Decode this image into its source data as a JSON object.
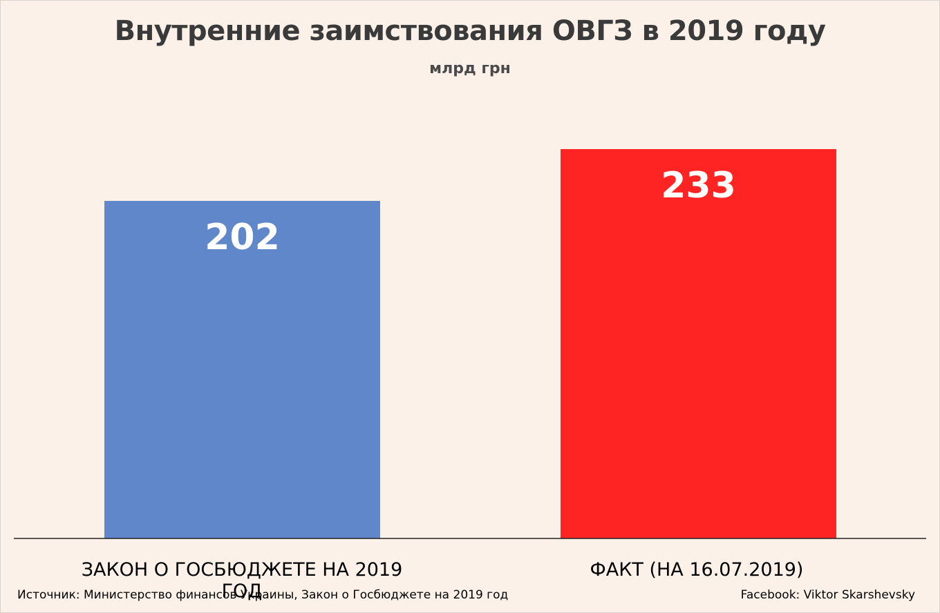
{
  "chart_data": {
    "type": "bar",
    "title": "Внутренние заимствования ОВГЗ в 2019 году",
    "subtitle": "млрд грн",
    "categories": [
      "ЗАКОН О ГОСБЮДЖЕТЕ НА 2019 ГОД",
      "ФАКТ (НА 16.07.2019)"
    ],
    "values": [
      202,
      233
    ],
    "value_labels": [
      "202",
      "233"
    ],
    "colors": [
      "#5f87c9",
      "#ff2424"
    ],
    "xlabel": "",
    "ylabel": "",
    "ylim": [
      0,
      290
    ],
    "grid": false,
    "legend": "none"
  },
  "footer": {
    "source": "Источник: Министерство финансов Украины, Закон о Госбюджете на 2019 год",
    "credit": "Facebook: Viktor Skarshevsky"
  }
}
